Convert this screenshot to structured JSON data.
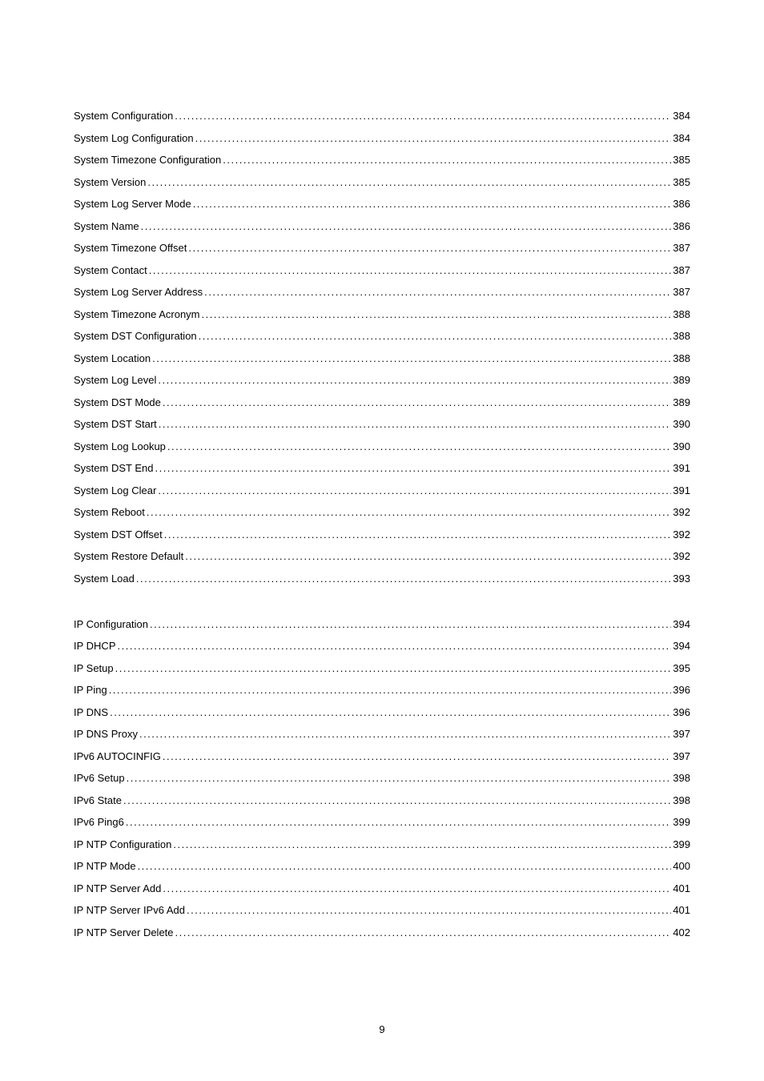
{
  "sections": [
    {
      "entries": [
        {
          "label": "System Configuration",
          "page": "384"
        },
        {
          "label": "System Log Configuration",
          "page": "384"
        },
        {
          "label": "System Timezone Configuration",
          "page": "385"
        },
        {
          "label": "System Version",
          "page": "385"
        },
        {
          "label": "System Log Server Mode",
          "page": "386"
        },
        {
          "label": "System Name",
          "page": "386"
        },
        {
          "label": "System Timezone Offset",
          "page": "387"
        },
        {
          "label": "System Contact",
          "page": "387"
        },
        {
          "label": "System Log Server Address",
          "page": "387"
        },
        {
          "label": "System Timezone Acronym",
          "page": "388"
        },
        {
          "label": "System DST Configuration",
          "page": "388"
        },
        {
          "label": "System Location",
          "page": "388"
        },
        {
          "label": "System Log Level",
          "page": "389"
        },
        {
          "label": "System DST Mode",
          "page": "389"
        },
        {
          "label": "System DST Start",
          "page": "390"
        },
        {
          "label": "System Log Lookup",
          "page": "390"
        },
        {
          "label": "System DST End",
          "page": "391"
        },
        {
          "label": "System Log Clear",
          "page": "391"
        },
        {
          "label": "System Reboot",
          "page": "392"
        },
        {
          "label": "System DST Offset",
          "page": "392"
        },
        {
          "label": "System Restore Default",
          "page": "392"
        },
        {
          "label": "System Load",
          "page": "393"
        }
      ]
    },
    {
      "entries": [
        {
          "label": "IP Configuration",
          "page": "394"
        },
        {
          "label": "IP DHCP",
          "page": "394"
        },
        {
          "label": "IP Setup",
          "page": "395"
        },
        {
          "label": "IP Ping",
          "page": "396"
        },
        {
          "label": "IP DNS",
          "page": "396"
        },
        {
          "label": "IP DNS Proxy",
          "page": "397"
        },
        {
          "label": "IPv6 AUTOCINFIG",
          "page": "397"
        },
        {
          "label": "IPv6 Setup",
          "page": "398"
        },
        {
          "label": "IPv6 State",
          "page": "398"
        },
        {
          "label": "IPv6 Ping6",
          "page": "399"
        },
        {
          "label": "IP NTP Configuration",
          "page": "399"
        },
        {
          "label": "IP NTP Mode",
          "page": "400"
        },
        {
          "label": "IP NTP Server Add",
          "page": "401"
        },
        {
          "label": "IP NTP Server IPv6 Add",
          "page": "401"
        },
        {
          "label": "IP NTP Server Delete",
          "page": "402"
        }
      ]
    }
  ],
  "pageNumber": "9",
  "style": {
    "text_color": "#000000",
    "background_color": "#ffffff",
    "font_size": 13,
    "line_spacing": 12.5
  }
}
